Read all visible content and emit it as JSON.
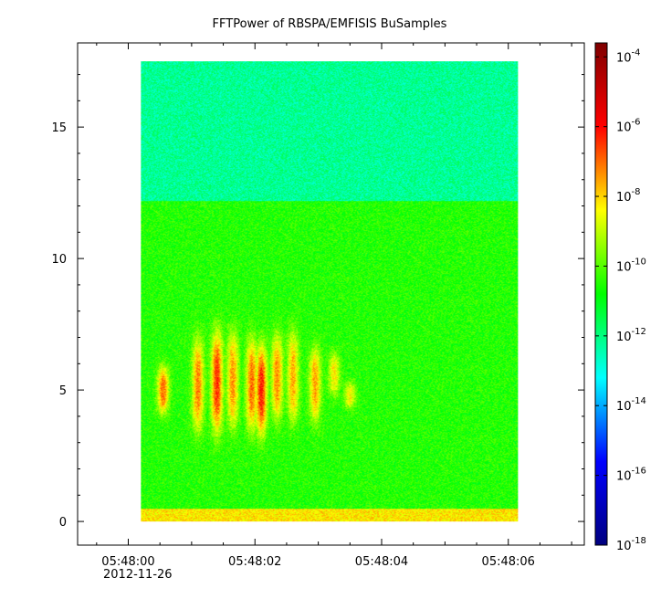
{
  "chart_data": {
    "type": "heatmap",
    "title": "FFTPower of RBSPA/EMFISIS  BuSamples",
    "xlabel": "",
    "ylabel": "",
    "x_ticks": [
      {
        "value": 0,
        "label": "05:48:00"
      },
      {
        "value": 2,
        "label": "05:48:02"
      },
      {
        "value": 4,
        "label": "05:48:04"
      },
      {
        "value": 6,
        "label": "05:48:06"
      }
    ],
    "x_date_label": "2012-11-26",
    "xlim": [
      -0.8,
      7.2
    ],
    "x_data_range": [
      0.2,
      6.15
    ],
    "y_ticks": [
      0,
      5,
      10,
      15
    ],
    "ylim": [
      -0.9,
      18.2
    ],
    "y_data_range": [
      0,
      17.5
    ],
    "colorbar": {
      "scale": "log",
      "range_exponent": [
        -18,
        -3.6
      ],
      "ticks": [
        {
          "base": "10",
          "exp": "-4",
          "value": -4
        },
        {
          "base": "10",
          "exp": "-6",
          "value": -6
        },
        {
          "base": "10",
          "exp": "-8",
          "value": -8
        },
        {
          "base": "10",
          "exp": "-10",
          "value": -10
        },
        {
          "base": "10",
          "exp": "-12",
          "value": -12
        },
        {
          "base": "10",
          "exp": "-14",
          "value": -14
        },
        {
          "base": "10",
          "exp": "-16",
          "value": -16
        },
        {
          "base": "10",
          "exp": "-18",
          "value": -18
        }
      ],
      "colormap": [
        "#00007f",
        "#0000ff",
        "#00ffff",
        "#00ff00",
        "#ffff00",
        "#ff0000",
        "#7f0000"
      ]
    },
    "regions": [
      {
        "y_range": [
          12.2,
          17.5
        ],
        "level_exponent": -12.2
      },
      {
        "y_range": [
          0.5,
          12.2
        ],
        "level_exponent": -10.5
      },
      {
        "y_range": [
          0,
          0.5
        ],
        "level_exponent": -8.2
      }
    ],
    "bursts": [
      {
        "x": 0.55,
        "y_center": 5.0,
        "y_span": 1.8,
        "level_exponent": -7.0
      },
      {
        "x": 1.1,
        "y_center": 5.2,
        "y_span": 3.5,
        "level_exponent": -7.2
      },
      {
        "x": 1.4,
        "y_center": 5.3,
        "y_span": 3.8,
        "level_exponent": -6.4
      },
      {
        "x": 1.65,
        "y_center": 5.4,
        "y_span": 3.6,
        "level_exponent": -7.4
      },
      {
        "x": 1.95,
        "y_center": 5.2,
        "y_span": 3.5,
        "level_exponent": -7.0
      },
      {
        "x": 2.1,
        "y_center": 5.0,
        "y_span": 3.4,
        "level_exponent": -6.2
      },
      {
        "x": 2.35,
        "y_center": 5.5,
        "y_span": 3.2,
        "level_exponent": -7.3
      },
      {
        "x": 2.6,
        "y_center": 5.5,
        "y_span": 3.4,
        "level_exponent": -7.6
      },
      {
        "x": 2.95,
        "y_center": 5.2,
        "y_span": 2.8,
        "level_exponent": -7.5
      },
      {
        "x": 3.25,
        "y_center": 5.6,
        "y_span": 1.6,
        "level_exponent": -8.2
      },
      {
        "x": 3.5,
        "y_center": 4.8,
        "y_span": 1.0,
        "level_exponent": -8.3
      },
      {
        "x": 0.05,
        "y_center": 6.6,
        "y_span": 1.0,
        "level_exponent": -8.5
      }
    ]
  }
}
